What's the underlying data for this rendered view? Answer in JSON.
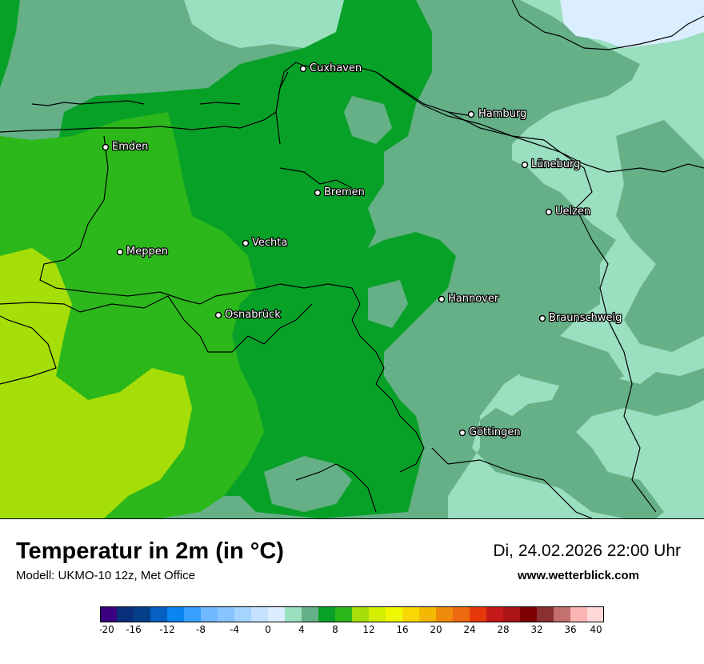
{
  "map": {
    "colors": {
      "lightest_mint": "#9adfbf",
      "mint": "#66b088",
      "green": "#08a128",
      "bright_green": "#2cb81a",
      "lime": "#a6de0a",
      "light_blue": "#dbeeff",
      "border": "#000000"
    },
    "cities": [
      {
        "name": "Cuxhaven"
      },
      {
        "name": "Hamburg"
      },
      {
        "name": "Emden"
      },
      {
        "name": "Lüneburg"
      },
      {
        "name": "Bremen"
      },
      {
        "name": "Uelzen"
      },
      {
        "name": "Vechta"
      },
      {
        "name": "Meppen"
      },
      {
        "name": "Hannover"
      },
      {
        "name": "Osnabrück"
      },
      {
        "name": "Braunschweig"
      },
      {
        "name": "Göttingen"
      }
    ]
  },
  "footer": {
    "title": "Temperatur in 2m (in °C)",
    "model": "Modell: UKMO-10 12z, Met Office",
    "datetime": "Di, 24.02.2026 22:00 Uhr",
    "website": "www.wetterblick.com"
  },
  "legend": {
    "colors": [
      "#3b0080",
      "#0a2f7a",
      "#053f8a",
      "#0660c2",
      "#0a84ee",
      "#36a0ff",
      "#70b8ff",
      "#88c4ff",
      "#a4d4ff",
      "#c4e2ff",
      "#dcecff",
      "#9adfbf",
      "#66b088",
      "#08a128",
      "#2cb81a",
      "#a6de0a",
      "#d4ee00",
      "#f0f800",
      "#f8d800",
      "#f4b800",
      "#f08a0a",
      "#ee6a10",
      "#e6380a",
      "#c41a1a",
      "#ac1418",
      "#7e0000",
      "#8a3030",
      "#c27070",
      "#fcb4b4",
      "#ffd8d8"
    ],
    "tick_labels": [
      "-20",
      "-16",
      "-12",
      "-8",
      "-4",
      "0",
      "4",
      "8",
      "12",
      "16",
      "20",
      "24",
      "28",
      "32",
      "36",
      "40"
    ]
  }
}
